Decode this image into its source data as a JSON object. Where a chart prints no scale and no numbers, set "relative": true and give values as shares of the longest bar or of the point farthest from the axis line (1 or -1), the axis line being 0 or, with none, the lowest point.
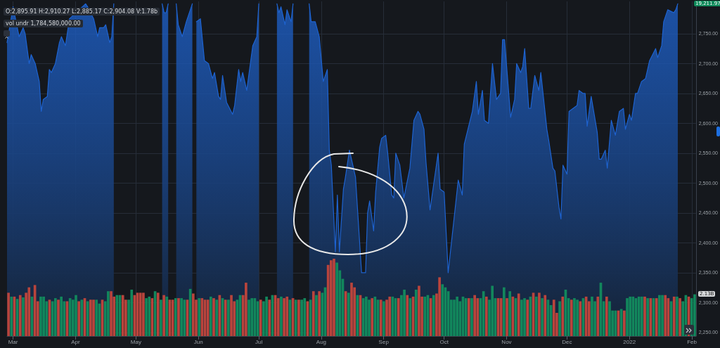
{
  "chart_data": [
    {
      "type": "area",
      "marker": "none",
      "grid": true,
      "annotations": [
        "O:2,895.91  H:2,910.27  L:2,885.17  C:2,904.08  V:1.78b",
        "vol undr  1,784,580,000.00",
        "19,211.97"
      ],
      "xlim": [
        "2021-02-26",
        "2022-02-03"
      ],
      "xticks": [
        {
          "value": "2021-03-01",
          "label": "Mar"
        },
        {
          "value": "2021-04-01",
          "label": "Apr"
        },
        {
          "value": "2021-05-01",
          "label": "May"
        },
        {
          "value": "2021-06-01",
          "label": "Jun"
        },
        {
          "value": "2021-07-01",
          "label": "Jul"
        },
        {
          "value": "2021-08-01",
          "label": "Aug"
        },
        {
          "value": "2021-09-01",
          "label": "Sep"
        },
        {
          "value": "2021-10-01",
          "label": "Oct"
        },
        {
          "value": "2021-11-01",
          "label": "Nov"
        },
        {
          "value": "2021-12-01",
          "label": "Dec"
        },
        {
          "value": "2022-01-01",
          "label": "2022"
        },
        {
          "value": "2022-02-01",
          "label": "Feb"
        }
      ],
      "ylim": [
        2244,
        2804
      ],
      "yticks": [
        {
          "value": 2250,
          "label": "2,250.00"
        },
        {
          "value": 2300,
          "label": "2,300.00"
        },
        {
          "value": 2350,
          "label": "2,350.00"
        },
        {
          "value": 2400,
          "label": "2,400.00"
        },
        {
          "value": 2450,
          "label": "2,450.00"
        },
        {
          "value": 2500,
          "label": "2,500.00"
        },
        {
          "value": 2550,
          "label": "2,550.00"
        },
        {
          "value": 2600,
          "label": "2,600.00"
        },
        {
          "value": 2650,
          "label": "2,650.00"
        },
        {
          "value": 2700,
          "label": "2,700.00"
        },
        {
          "value": 2750,
          "label": "2,750.00"
        }
      ],
      "x": [
        "2021-02-26",
        "2021-03-01",
        "2021-03-04",
        "2021-03-06",
        "2021-03-07",
        "2021-03-09",
        "2021-03-10",
        "2021-03-12",
        "2021-03-14",
        "2021-03-15",
        "2021-03-16",
        "2021-03-18",
        "2021-03-19",
        "2021-03-20",
        "2021-03-22",
        "2021-03-24",
        "2021-03-25",
        "2021-03-27",
        "2021-03-29",
        "2021-04-06",
        "2021-04-07",
        "2021-04-10",
        "2021-04-12",
        "2021-04-13",
        "2021-04-15",
        "2021-04-16",
        "2021-04-18",
        "2021-04-19",
        "2021-04-20",
        "2021-04-27",
        "2021-05-14",
        "2021-05-15",
        "2021-05-16",
        "2021-05-17",
        "2021-05-18",
        "2021-05-21",
        "2021-05-22",
        "2021-05-24",
        "2021-05-26",
        "2021-05-29",
        "2021-05-30",
        "2021-05-31",
        "2021-06-02",
        "2021-06-04",
        "2021-06-06",
        "2021-06-08",
        "2021-06-09",
        "2021-06-11",
        "2021-06-12",
        "2021-06-13",
        "2021-06-15",
        "2021-06-18",
        "2021-06-19",
        "2021-06-21",
        "2021-06-22",
        "2021-06-23",
        "2021-06-25",
        "2021-06-28",
        "2021-06-30",
        "2021-07-01",
        "2021-07-04",
        "2021-07-10",
        "2021-07-11",
        "2021-07-12",
        "2021-07-14",
        "2021-07-15",
        "2021-07-17",
        "2021-07-18",
        "2021-07-21",
        "2021-07-26",
        "2021-07-27",
        "2021-07-29",
        "2021-07-31",
        "2021-08-02",
        "2021-08-04",
        "2021-08-05",
        "2021-08-06",
        "2021-08-08",
        "2021-08-09",
        "2021-08-10",
        "2021-08-12",
        "2021-08-13",
        "2021-08-15",
        "2021-08-18",
        "2021-08-21",
        "2021-08-23",
        "2021-08-24",
        "2021-08-25",
        "2021-08-27",
        "2021-08-28",
        "2021-08-30",
        "2021-08-31",
        "2021-09-02",
        "2021-09-03",
        "2021-09-05",
        "2021-09-06",
        "2021-09-07",
        "2021-09-09",
        "2021-09-11",
        "2021-09-14",
        "2021-09-16",
        "2021-09-18",
        "2021-09-19",
        "2021-09-21",
        "2021-09-22",
        "2021-09-24",
        "2021-09-28",
        "2021-09-29",
        "2021-10-01",
        "2021-10-03",
        "2021-10-08",
        "2021-10-10",
        "2021-10-11",
        "2021-10-15",
        "2021-10-17",
        "2021-10-18",
        "2021-10-20",
        "2021-10-21",
        "2021-10-23",
        "2021-10-25",
        "2021-10-27",
        "2021-10-29",
        "2021-10-30",
        "2021-10-31",
        "2021-11-03",
        "2021-11-05",
        "2021-11-06",
        "2021-11-08",
        "2021-11-09",
        "2021-11-10",
        "2021-11-12",
        "2021-11-13",
        "2021-11-15",
        "2021-11-17",
        "2021-11-18",
        "2021-11-21",
        "2021-11-22",
        "2021-11-24",
        "2021-11-25",
        "2021-11-27",
        "2021-11-28",
        "2021-11-29",
        "2021-12-01",
        "2021-12-02",
        "2021-12-04",
        "2021-12-06",
        "2021-12-07",
        "2021-12-09",
        "2021-12-10",
        "2021-12-11",
        "2021-12-13",
        "2021-12-16",
        "2021-12-17",
        "2021-12-18",
        "2021-12-20",
        "2021-12-21",
        "2021-12-23",
        "2021-12-25",
        "2021-12-27",
        "2021-12-29",
        "2021-12-30",
        "2022-01-01",
        "2022-01-02",
        "2022-01-04",
        "2022-01-05",
        "2022-01-07",
        "2022-01-09",
        "2022-01-11",
        "2022-01-14",
        "2022-01-15",
        "2022-01-17",
        "2022-01-18",
        "2022-01-20",
        "2022-01-23",
        "2022-01-24",
        "2022-01-25"
      ],
      "series": [
        {
          "color": "#1e63d0",
          "values": [
            2735,
            2795,
            2745,
            2760,
            2750,
            2700,
            2715,
            2700,
            2670,
            2620,
            2640,
            2645,
            2690,
            2685,
            2700,
            2735,
            2745,
            2730,
            2775,
            2800,
            2795,
            2775,
            2745,
            2760,
            2760,
            2765,
            2735,
            2745,
            2800,
            null,
            2800,
            2785,
            2785,
            2800,
            null,
            2800,
            2765,
            2745,
            2770,
            2800,
            null,
            2770,
            2775,
            2705,
            2700,
            2675,
            2685,
            2645,
            2640,
            2680,
            2635,
            2615,
            2630,
            2690,
            2670,
            2685,
            2655,
            2730,
            2745,
            2800,
            null,
            2800,
            2785,
            2795,
            2765,
            2790,
            2770,
            2800,
            null,
            2800,
            2770,
            2770,
            2745,
            2670,
            2690,
            2555,
            2530,
            2385,
            2480,
            2385,
            2490,
            2510,
            2555,
            2510,
            2350,
            2350,
            2450,
            2470,
            2420,
            2485,
            2560,
            2575,
            2580,
            2550,
            2480,
            2475,
            2550,
            2530,
            2475,
            2525,
            2605,
            2620,
            2615,
            2590,
            2535,
            2455,
            2550,
            2490,
            2485,
            2350,
            2505,
            2480,
            2565,
            2620,
            2670,
            2615,
            2655,
            2605,
            2600,
            2700,
            2640,
            2650,
            2740,
            2740,
            2610,
            2640,
            2700,
            2685,
            2695,
            2725,
            2625,
            2625,
            2680,
            2655,
            2685,
            2590,
            2570,
            2525,
            2520,
            2460,
            2440,
            2530,
            2515,
            2620,
            2625,
            2630,
            2655,
            2650,
            2650,
            2595,
            2645,
            2585,
            2540,
            2540,
            2555,
            2525,
            2605,
            2580,
            2620,
            2625,
            2590,
            2615,
            2605,
            2650,
            2650,
            2670,
            2675,
            2705,
            2725,
            2710,
            2730,
            2770,
            2790,
            2785,
            2790,
            2800
          ]
        }
      ]
    },
    {
      "type": "bar",
      "relative": true,
      "annotations": [
        "2.13B"
      ],
      "categories": [
        null,
        null,
        null,
        null,
        null,
        null,
        null,
        null,
        null,
        null,
        null,
        null,
        null,
        null,
        null,
        null,
        null,
        null,
        null,
        null,
        null,
        null,
        null,
        null,
        null,
        null,
        null,
        null,
        null,
        null,
        null,
        null,
        null,
        null,
        null,
        null,
        null,
        null,
        null,
        null,
        null,
        null,
        null,
        null,
        null,
        null,
        null,
        null,
        null,
        null,
        null,
        null,
        null,
        null,
        null,
        null,
        null,
        null,
        null,
        null,
        null,
        null,
        null,
        null,
        null,
        null,
        null,
        null,
        null,
        null,
        null,
        null,
        null,
        null,
        null,
        null,
        null,
        null,
        null,
        null,
        null,
        null,
        null,
        null,
        null,
        null,
        null,
        null,
        null,
        null,
        null,
        null,
        null,
        null,
        null,
        null,
        null,
        null,
        null,
        null,
        null,
        null,
        null,
        null,
        null,
        null,
        null,
        null,
        null,
        null,
        null,
        null,
        null,
        null,
        null,
        null,
        null,
        null,
        null,
        null,
        null,
        null,
        null,
        null,
        null,
        null,
        null,
        null,
        null,
        null,
        null,
        null,
        null,
        null,
        null,
        null,
        null,
        null,
        null,
        null,
        null,
        null,
        null,
        null,
        null,
        null,
        null,
        null,
        null,
        null,
        null,
        null,
        null,
        null,
        null,
        null,
        null,
        null,
        null,
        null,
        null,
        null,
        null,
        null,
        null,
        null,
        null,
        null,
        null,
        null,
        null,
        null,
        null,
        null,
        null,
        null,
        null,
        null,
        null,
        null,
        null,
        null,
        null,
        null,
        null,
        null,
        null,
        null,
        null,
        null,
        null,
        null,
        null,
        null,
        null,
        null,
        null,
        null,
        null,
        null,
        null,
        null,
        null,
        null,
        null,
        null,
        null,
        null,
        null,
        null,
        null,
        null,
        null,
        null,
        null,
        null,
        null,
        null,
        null,
        null,
        null,
        null,
        null,
        null,
        null,
        null,
        null,
        null,
        null,
        null,
        null,
        null,
        null,
        null,
        null
      ],
      "values": [
        0.56,
        0.51,
        0.51,
        0.48,
        0.53,
        0.5,
        0.56,
        0.63,
        0.51,
        0.66,
        0.45,
        0.51,
        0.51,
        0.45,
        0.47,
        0.45,
        0.49,
        0.47,
        0.51,
        0.45,
        0.45,
        0.49,
        0.47,
        0.53,
        0.45,
        0.47,
        0.49,
        0.45,
        0.47,
        0.47,
        0.47,
        0.42,
        0.47,
        0.45,
        0.58,
        0.58,
        0.51,
        0.53,
        0.53,
        0.53,
        0.47,
        0.47,
        0.6,
        0.53,
        0.56,
        0.56,
        0.56,
        0.49,
        0.51,
        0.49,
        0.58,
        0.56,
        0.47,
        0.53,
        0.51,
        0.47,
        0.47,
        0.49,
        0.49,
        0.49,
        0.47,
        0.47,
        0.61,
        0.55,
        0.47,
        0.49,
        0.49,
        0.47,
        0.47,
        0.51,
        0.49,
        0.47,
        0.53,
        0.49,
        0.47,
        0.47,
        0.53,
        0.45,
        0.47,
        0.53,
        0.53,
        0.69,
        0.47,
        0.49,
        0.49,
        0.45,
        0.47,
        0.45,
        0.51,
        0.47,
        0.53,
        0.53,
        0.49,
        0.51,
        0.49,
        0.51,
        0.47,
        0.49,
        0.47,
        0.47,
        0.47,
        0.49,
        0.45,
        0.47,
        0.58,
        0.53,
        0.58,
        0.56,
        0.63,
        0.92,
        0.98,
        1,
        0.95,
        0.85,
        0.74,
        0.58,
        0.56,
        0.69,
        0.63,
        0.53,
        0.53,
        0.49,
        0.51,
        0.47,
        0.49,
        0.51,
        0.47,
        0.47,
        0.45,
        0.47,
        0.51,
        0.51,
        0.49,
        0.49,
        0.53,
        0.6,
        0.53,
        0.49,
        0.51,
        0.6,
        0.65,
        0.51,
        0.51,
        0.53,
        0.49,
        0.53,
        0.55,
        0.76,
        0.67,
        0.63,
        0.58,
        0.47,
        0.47,
        0.51,
        0.45,
        0.51,
        0.49,
        0.49,
        0.49,
        0.53,
        0.49,
        0.49,
        0.58,
        0.51,
        0.47,
        0.65,
        0.49,
        0.49,
        0.49,
        0.63,
        0.49,
        0.58,
        0.51,
        0.49,
        0.55,
        0.47,
        0.49,
        0.47,
        0.51,
        0.56,
        0.51,
        0.56,
        0.49,
        0.53,
        0.47,
        0.4,
        0.47,
        0.3,
        0.45,
        0.51,
        0.6,
        0.49,
        0.47,
        0.49,
        0.47,
        0.45,
        0.49,
        0.51,
        0.45,
        0.51,
        0.45,
        0.51,
        0.69,
        0.45,
        0.51,
        0.45,
        0.33,
        0.33,
        0.33,
        0.35,
        0.33,
        0.49,
        0.51,
        0.51,
        0.49,
        0.51,
        0.51,
        0.51,
        0.49,
        0.49,
        0.49,
        0.49,
        0.53,
        0.53,
        0.53,
        0.49,
        0.45,
        0.51,
        0.51,
        0.49,
        0.45,
        0.53,
        0.51,
        0.49,
        0.54
      ],
      "colors": [
        "#b9443c",
        "#12875c",
        "#b9443c",
        "#12875c",
        "#b9443c",
        "#12875c",
        "#b9443c",
        "#b9443c",
        "#12875c",
        "#b9443c",
        "#b9443c",
        "#12875c",
        "#12875c",
        "#12875c",
        "#b9443c",
        "#12875c",
        "#12875c",
        "#b9443c",
        "#12875c",
        "#12875c",
        "#b9443c",
        "#12875c",
        "#12875c",
        "#12875c",
        "#b9443c",
        "#12875c",
        "#b9443c",
        "#12875c",
        "#b9443c",
        "#b9443c",
        "#12875c",
        "#12875c",
        "#b9443c",
        "#12875c",
        "#12875c",
        "#b9443c",
        "#b9443c",
        "#12875c",
        "#12875c",
        "#b9443c",
        "#b9443c",
        "#12875c",
        "#12875c",
        "#b9443c",
        "#b9443c",
        "#b9443c",
        "#b9443c",
        "#12875c",
        "#12875c",
        "#b9443c",
        "#12875c",
        "#b9443c",
        "#12875c",
        "#b9443c",
        "#12875c",
        "#b9443c",
        "#b9443c",
        "#12875c",
        "#b9443c",
        "#12875c",
        "#12875c",
        "#b9443c",
        "#12875c",
        "#b9443c",
        "#b9443c",
        "#12875c",
        "#b9443c",
        "#b9443c",
        "#b9443c",
        "#12875c",
        "#b9443c",
        "#12875c",
        "#b9443c",
        "#12875c",
        "#b9443c",
        "#12875c",
        "#b9443c",
        "#b9443c",
        "#12875c",
        "#12875c",
        "#b9443c",
        "#b9443c",
        "#12875c",
        "#12875c",
        "#12875c",
        "#12875c",
        "#b9443c",
        "#12875c",
        "#12875c",
        "#b9443c",
        "#12875c",
        "#b9443c",
        "#b9443c",
        "#12875c",
        "#b9443c",
        "#b9443c",
        "#12875c",
        "#b9443c",
        "#12875c",
        "#b9443c",
        "#12875c",
        "#12875c",
        "#b9443c",
        "#12875c",
        "#b9443c",
        "#12875c",
        "#b9443c",
        "#12875c",
        "#12875c",
        "#b9443c",
        "#b9443c",
        "#b9443c",
        "#12875c",
        "#12875c",
        "#12875c",
        "#b9443c",
        "#12875c",
        "#b9443c",
        "#b9443c",
        "#12875c",
        "#b9443c",
        "#12875c",
        "#12875c",
        "#12875c",
        "#b9443c",
        "#12875c",
        "#12875c",
        "#b9443c",
        "#12875c",
        "#b9443c",
        "#b9443c",
        "#12875c",
        "#12875c",
        "#b9443c",
        "#12875c",
        "#12875c",
        "#b9443c",
        "#12875c",
        "#b9443c",
        "#12875c",
        "#b9443c",
        "#b9443c",
        "#12875c",
        "#12875c",
        "#b9443c",
        "#12875c",
        "#b9443c",
        "#b9443c",
        "#12875c",
        "#12875c",
        "#12875c",
        "#12875c",
        "#12875c",
        "#12875c",
        "#12875c",
        "#12875c",
        "#12875c",
        "#b9443c",
        "#12875c",
        "#b9443c",
        "#b9443c",
        "#12875c",
        "#12875c",
        "#b9443c",
        "#12875c",
        "#12875c",
        "#12875c",
        "#b9443c",
        "#b9443c",
        "#12875c",
        "#b9443c",
        "#12875c",
        "#b9443c",
        "#12875c",
        "#b9443c",
        "#12875c",
        "#12875c",
        "#b9443c",
        "#12875c",
        "#b9443c",
        "#12875c",
        "#b9443c",
        "#12875c",
        "#b9443c",
        "#12875c",
        "#12875c",
        "#b9443c",
        "#b9443c",
        "#12875c",
        "#b9443c",
        "#12875c",
        "#12875c",
        "#b9443c",
        "#12875c",
        "#12875c",
        "#b9443c",
        "#12875c",
        "#b9443c",
        "#b9443c",
        "#12875c",
        "#12875c",
        "#b9443c",
        "#12875c",
        "#12875c",
        "#b9443c",
        "#12875c",
        "#12875c",
        "#12875c",
        "#b9443c",
        "#12875c",
        "#b9443c",
        "#12875c",
        "#12875c",
        "#12875c",
        "#12875c",
        "#12875c",
        "#12875c",
        "#b9443c",
        "#12875c",
        "#b9443c",
        "#12875c",
        "#b9443c",
        "#12875c",
        "#12875c",
        "#b9443c",
        "#b9443c",
        "#12875c",
        "#b9443c",
        "#12875c",
        "#b9443c",
        "#12875c",
        "#12875c",
        "#b9443c",
        "#12875c",
        "#12875c"
      ]
    }
  ]
}
